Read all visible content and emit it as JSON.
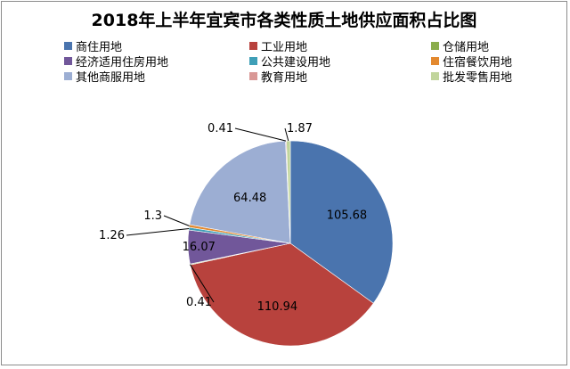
{
  "chart_data": {
    "type": "pie",
    "title": "2018年上半年宜宾市各类性质土地供应面积占比图",
    "categories": [
      "商住用地",
      "工业用地",
      "仓储用地",
      "经济适用住房用地",
      "公共建设用地",
      "住宿餐饮用地",
      "其他商服用地",
      "教育用地",
      "批发零售用地"
    ],
    "values": [
      105.68,
      110.94,
      0.41,
      16.07,
      1.26,
      1.3,
      64.48,
      0.41,
      1.87
    ],
    "data_labels": [
      "105.68",
      "110.94",
      "0.41",
      "16.07",
      "1.26",
      "1.3",
      "64.48",
      "0.41",
      "1.87"
    ],
    "colors": [
      "#4a74ae",
      "#b8423d",
      "#8bad4c",
      "#71579a",
      "#3f9fb7",
      "#e3892f",
      "#9caed3",
      "#d99896",
      "#c1d59c"
    ],
    "legend_position": "top"
  }
}
